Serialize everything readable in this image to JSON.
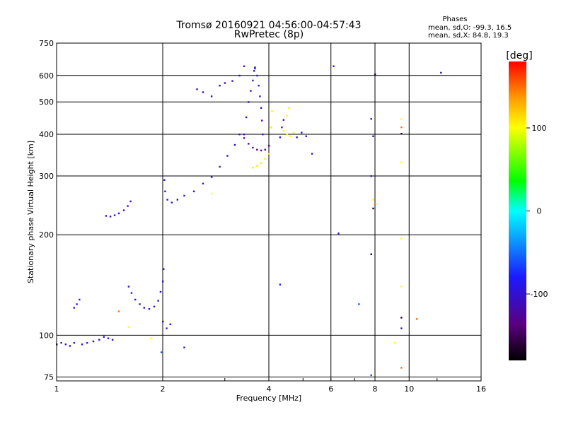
{
  "chart_data": {
    "type": "scatter",
    "title": "Tromsø 20160921 04:56:00-04:57:43",
    "subtitle": "RwPretec (8p)",
    "stats": {
      "heading": "Phases",
      "line_o": "mean, sd,O: -99.3, 16.5",
      "line_x": "mean, sd,X:  84.8, 19.3"
    },
    "xlabel": "Frequency [MHz]",
    "ylabel": "Stationary phase Virtual Height [km]",
    "x_scale": "log2",
    "y_scale": "log",
    "xlim": [
      1,
      16
    ],
    "ylim": [
      73,
      750
    ],
    "x_ticks": [
      {
        "v": 1,
        "label": "1"
      },
      {
        "v": 2,
        "label": "2"
      },
      {
        "v": 4,
        "label": "4"
      },
      {
        "v": 6,
        "label": "6"
      },
      {
        "v": 8,
        "label": "8"
      },
      {
        "v": 10,
        "label": "10"
      },
      {
        "v": 16,
        "label": "16"
      }
    ],
    "y_ticks": [
      {
        "v": 75,
        "label": "75"
      },
      {
        "v": 100,
        "label": "100"
      },
      {
        "v": 200,
        "label": "200"
      },
      {
        "v": 300,
        "label": "300"
      },
      {
        "v": 400,
        "label": "400"
      },
      {
        "v": 500,
        "label": "500"
      },
      {
        "v": 600,
        "label": "600"
      },
      {
        "v": 750,
        "label": "750"
      }
    ],
    "grid": true,
    "colorbar": {
      "label": "deg",
      "range": [
        -180,
        180
      ],
      "ticks": [
        {
          "v": 100,
          "label": "100"
        },
        {
          "v": 0,
          "label": "0"
        },
        {
          "v": -100,
          "label": "-100"
        }
      ]
    },
    "traces": [
      {
        "phase": -100,
        "points": [
          [
            1.0,
            94
          ],
          [
            1.03,
            95
          ],
          [
            1.06,
            94
          ],
          [
            1.09,
            93
          ],
          [
            1.12,
            95
          ]
        ]
      },
      {
        "phase": -105,
        "points": [
          [
            1.18,
            94
          ],
          [
            1.22,
            95
          ],
          [
            1.27,
            96
          ],
          [
            1.32,
            97
          ],
          [
            1.36,
            99
          ],
          [
            1.4,
            98
          ],
          [
            1.44,
            97
          ]
        ]
      },
      {
        "phase": -98,
        "points": [
          [
            1.12,
            121
          ],
          [
            1.14,
            124
          ],
          [
            1.16,
            128
          ]
        ]
      },
      {
        "phase": -110,
        "points": [
          [
            1.38,
            228
          ],
          [
            1.42,
            227
          ],
          [
            1.46,
            229
          ],
          [
            1.5,
            232
          ],
          [
            1.55,
            237
          ],
          [
            1.59,
            244
          ],
          [
            1.62,
            252
          ]
        ]
      },
      {
        "phase": -100,
        "points": [
          [
            1.6,
            140
          ],
          [
            1.63,
            134
          ],
          [
            1.67,
            128
          ],
          [
            1.72,
            124
          ],
          [
            1.77,
            121
          ],
          [
            1.83,
            120
          ],
          [
            1.89,
            122
          ],
          [
            1.94,
            127
          ],
          [
            1.97,
            135
          ],
          [
            2.0,
            145
          ],
          [
            2.01,
            158
          ]
        ]
      },
      {
        "phase": -108,
        "points": [
          [
            2.02,
            292
          ],
          [
            2.03,
            270
          ],
          [
            2.06,
            255
          ],
          [
            2.12,
            250
          ],
          [
            2.2,
            255
          ],
          [
            2.3,
            262
          ],
          [
            2.45,
            270
          ],
          [
            2.6,
            285
          ],
          [
            2.75,
            298
          ],
          [
            2.9,
            320
          ],
          [
            3.05,
            345
          ],
          [
            3.2,
            372
          ],
          [
            3.3,
            400
          ]
        ]
      },
      {
        "phase": -115,
        "points": [
          [
            2.5,
            546
          ],
          [
            2.6,
            535
          ],
          [
            2.75,
            520
          ],
          [
            2.9,
            560
          ],
          [
            3.0,
            570
          ],
          [
            3.15,
            578
          ],
          [
            3.3,
            600
          ],
          [
            3.4,
            640
          ]
        ]
      },
      {
        "phase": -112,
        "points": [
          [
            3.4,
            400
          ],
          [
            3.45,
            450
          ],
          [
            3.5,
            500
          ],
          [
            3.55,
            540
          ],
          [
            3.6,
            580
          ],
          [
            3.63,
            620
          ],
          [
            3.65,
            635
          ]
        ]
      },
      {
        "phase": -96,
        "points": [
          [
            3.65,
            630
          ],
          [
            3.7,
            600
          ],
          [
            3.74,
            560
          ],
          [
            3.77,
            520
          ],
          [
            3.8,
            480
          ],
          [
            3.82,
            440
          ],
          [
            3.84,
            400
          ]
        ]
      },
      {
        "phase": -128,
        "points": [
          [
            3.4,
            390
          ],
          [
            3.5,
            375
          ],
          [
            3.6,
            365
          ],
          [
            3.7,
            360
          ],
          [
            3.8,
            358
          ],
          [
            3.9,
            360
          ],
          [
            4.0,
            370
          ]
        ]
      },
      {
        "phase": 108,
        "points": [
          [
            3.6,
            318
          ],
          [
            3.7,
            322
          ],
          [
            3.8,
            328
          ],
          [
            3.9,
            338
          ],
          [
            4.0,
            350
          ],
          [
            4.05,
            420
          ],
          [
            4.08,
            470
          ]
        ]
      },
      {
        "phase": 102,
        "points": [
          [
            4.4,
            410
          ],
          [
            4.5,
            400
          ],
          [
            4.6,
            395
          ],
          [
            4.7,
            405
          ],
          [
            4.5,
            455
          ],
          [
            4.55,
            480
          ]
        ]
      },
      {
        "phase": -98,
        "points": [
          [
            4.3,
            392
          ],
          [
            4.35,
            420
          ],
          [
            4.4,
            442
          ],
          [
            4.8,
            392
          ],
          [
            4.95,
            405
          ],
          [
            5.1,
            395
          ]
        ]
      },
      {
        "phase": -85,
        "points": [
          [
            2.0,
            110
          ],
          [
            2.05,
            105
          ],
          [
            2.1,
            108
          ],
          [
            4.3,
            142
          ],
          [
            6.1,
            640
          ],
          [
            7.8,
            445
          ],
          [
            7.8,
            300
          ]
        ]
      },
      {
        "phase": 100,
        "points": [
          [
            1.85,
            98
          ],
          [
            1.6,
            106
          ],
          [
            2.75,
            266
          ],
          [
            9.5,
            445
          ],
          [
            9.5,
            330
          ],
          [
            9.5,
            195
          ],
          [
            9.5,
            140
          ],
          [
            7.9,
            255
          ],
          [
            9.1,
            95
          ]
        ]
      },
      {
        "phase": 150,
        "points": [
          [
            1.5,
            118
          ],
          [
            9.5,
            420
          ],
          [
            9.5,
            80
          ],
          [
            10.5,
            112
          ],
          [
            8.0,
            248
          ]
        ]
      },
      {
        "phase": -160,
        "points": [
          [
            7.9,
            240
          ],
          [
            7.8,
            175
          ],
          [
            9.5,
            402
          ],
          [
            9.5,
            113
          ],
          [
            8.0,
            605
          ]
        ]
      },
      {
        "phase": -110,
        "points": [
          [
            6.3,
            202
          ],
          [
            2.3,
            92
          ],
          [
            12.3,
            612
          ],
          [
            5.3,
            350
          ],
          [
            7.9,
            395
          ],
          [
            9.5,
            105
          ]
        ]
      },
      {
        "phase": -60,
        "points": [
          [
            7.2,
            124
          ],
          [
            7.8,
            76
          ],
          [
            1.98,
            89
          ]
        ]
      }
    ]
  }
}
